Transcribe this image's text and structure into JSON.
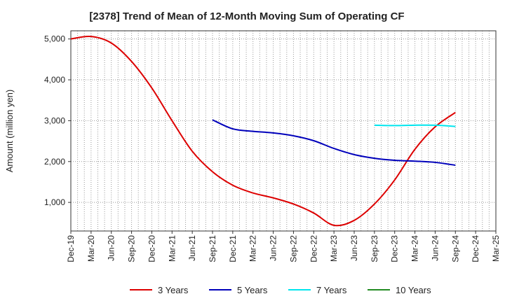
{
  "chart_data": {
    "type": "line",
    "title": "[2378]  Trend of Mean of 12-Month Moving Sum of Operating CF",
    "xlabel": "",
    "ylabel": "Amount (million yen)",
    "ylim": [
      300,
      5200
    ],
    "yticks": [
      1000,
      2000,
      3000,
      4000,
      5000
    ],
    "ytick_labels": [
      "1,000",
      "2,000",
      "3,000",
      "4,000",
      "5,000"
    ],
    "categories": [
      "Dec-19",
      "Mar-20",
      "Jun-20",
      "Sep-20",
      "Dec-20",
      "Mar-21",
      "Jun-21",
      "Sep-21",
      "Dec-21",
      "Mar-22",
      "Jun-22",
      "Sep-22",
      "Dec-22",
      "Mar-23",
      "Jun-23",
      "Sep-23",
      "Dec-23",
      "Mar-24",
      "Jun-24",
      "Sep-24",
      "Dec-24",
      "Mar-25"
    ],
    "grid": true,
    "legend_position": "bottom",
    "series": [
      {
        "name": "3 Years",
        "color": "#dd0000",
        "values": [
          5000,
          5060,
          4900,
          4450,
          3800,
          3000,
          2250,
          1750,
          1420,
          1230,
          1110,
          960,
          740,
          440,
          560,
          960,
          1550,
          2300,
          2850,
          3200,
          null,
          null
        ]
      },
      {
        "name": "5 Years",
        "color": "#0000bb",
        "values": [
          null,
          null,
          null,
          null,
          null,
          null,
          null,
          3020,
          2800,
          2740,
          2700,
          2630,
          2510,
          2320,
          2170,
          2080,
          2030,
          2010,
          1980,
          1910,
          null,
          null
        ]
      },
      {
        "name": "7 Years",
        "color": "#00e5ee",
        "values": [
          null,
          null,
          null,
          null,
          null,
          null,
          null,
          null,
          null,
          null,
          null,
          null,
          null,
          null,
          null,
          2890,
          2880,
          2890,
          2890,
          2860,
          null,
          null
        ]
      },
      {
        "name": "10 Years",
        "color": "#228b22",
        "values": [
          null,
          null,
          null,
          null,
          null,
          null,
          null,
          null,
          null,
          null,
          null,
          null,
          null,
          null,
          null,
          null,
          null,
          null,
          null,
          null,
          null,
          null
        ]
      }
    ]
  }
}
